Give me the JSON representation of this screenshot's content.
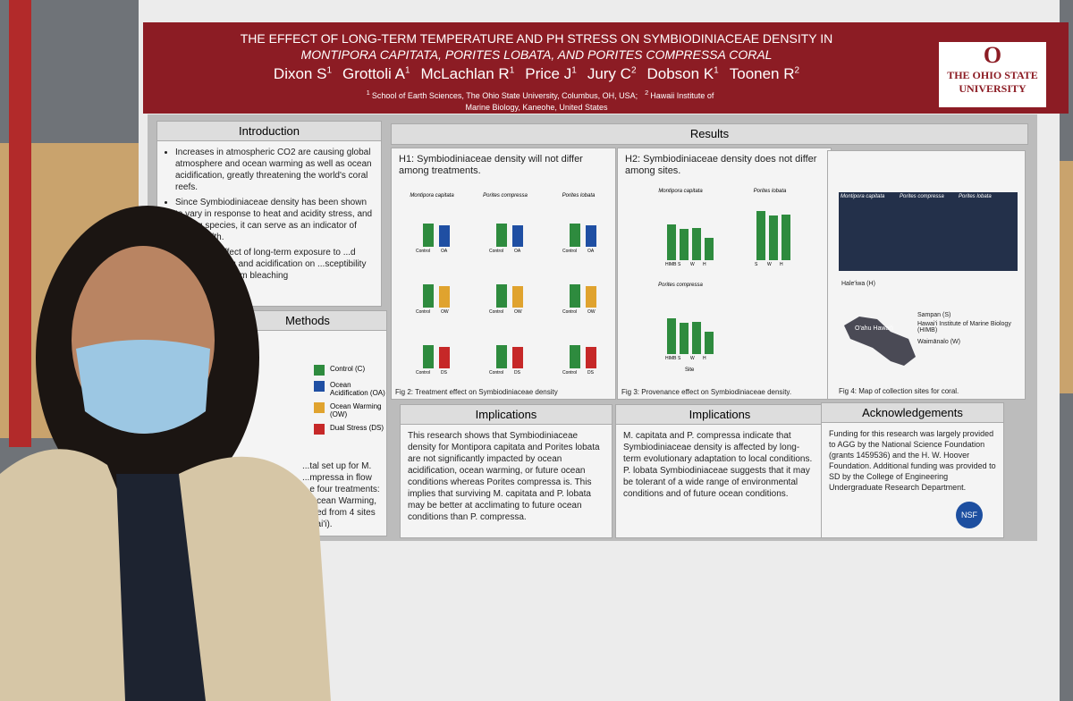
{
  "header": {
    "title_line1": "THE EFFECT OF LONG-TERM TEMPERATURE AND PH STRESS ON SYMBIODINIACEAE DENSITY IN",
    "title_line2": "MONTIPORA CAPITATA, PORITES LOBATA, AND PORITES COMPRESSA CORAL",
    "authors": [
      {
        "name": "Dixon S",
        "sup": "1"
      },
      {
        "name": "Grottoli A",
        "sup": "1"
      },
      {
        "name": "McLachlan R",
        "sup": "1"
      },
      {
        "name": "Price J",
        "sup": "1"
      },
      {
        "name": "Jury C",
        "sup": "2"
      },
      {
        "name": "Dobson K",
        "sup": "1"
      },
      {
        "name": "Toonen R",
        "sup": "2"
      }
    ],
    "affiliations": [
      {
        "sup": "1",
        "text": "School of Earth Sciences, The Ohio State University, Columbus, OH, USA;"
      },
      {
        "sup": "2",
        "text": "Hawaii Institute of Marine Biology, Kaneohe, United States"
      }
    ],
    "logo": {
      "letter": "O",
      "line1": "THE OHIO STATE",
      "line2": "UNIVERSITY"
    }
  },
  "introduction": {
    "heading": "Introduction",
    "bullets": [
      "Increases in atmospheric CO2 are causing global atmosphere and ocean warming as well as ocean acidification, greatly threatening the world's coral reefs.",
      "Since Symbiodiniaceae density has been shown to vary in response to heat and acidity stress, and among species, it can serve as an indicator of coral health.",
      "...ever, the effect of long-term exposure to ...d ocean warming and acidification on ...sceptibility and recovery from bleaching"
    ]
  },
  "methods": {
    "heading": "Methods",
    "legend": [
      "Control (C)",
      "Ocean Acidification (OA)",
      "Ocean Warming (OW)",
      "Dual Stress (DS)"
    ],
    "text": "...tal set up for M. ...mpressa in flow ...e four treatments: ...Ocean Warming, ...cted from 4 sites ...wai'i)."
  },
  "results": {
    "heading": "Results",
    "h1": "H1: Symbiodiniaceae density will not differ among treatments.",
    "h2": "H2: Symbiodiniaceae density does not differ among sites.",
    "fig2": {
      "species": [
        "Montipora capitata",
        "Porites compressa",
        "Porites lobata"
      ],
      "treatments": [
        "Control",
        "OA",
        "OW",
        "DS"
      ],
      "caption": "Fig 2: Treatment effect on Symbiodiniaceae density"
    },
    "fig3": {
      "species": [
        "Montipora capitata",
        "Porites lobata",
        "Porites compressa"
      ],
      "sites": [
        "HIMB",
        "S",
        "W",
        "H"
      ],
      "x_label": "Site",
      "caption": "Fig 3: Provenance effect on Symbiodiniaceae density."
    },
    "fig4": {
      "photo_labels": [
        "Montipora capitata",
        "Porites compressa",
        "Porites lobata"
      ],
      "map_labels": [
        "Hale'iwa (H)",
        "O'ahu Hawai'i",
        "Sampan (S)",
        "Hawai'i Institute of Marine Biology (HIMB)",
        "Waimānalo (W)"
      ],
      "caption": "Fig 4: Map of collection sites for coral."
    }
  },
  "implications1": {
    "heading": "Implications",
    "text": "This research shows that Symbiodiniaceae density for Montipora capitata and Porites lobata are not significantly impacted by ocean acidification, ocean warming, or future ocean conditions whereas Porites compressa is. This implies that surviving M. capitata and P. lobata may be better at acclimating to future ocean conditions than P. compressa."
  },
  "implications2": {
    "heading": "Implications",
    "text": "M. capitata and P. compressa indicate that Symbiodiniaceae density is affected by long-term evolutionary adaptation to local conditions. P. lobata Symbiodiniaceae suggests that it may be tolerant of a wide range of environmental conditions and of future ocean conditions."
  },
  "acknowledgements": {
    "heading": "Acknowledgements",
    "text": "Funding for this research was largely provided to AGG by the National Science Foundation (grants 1459536) and the H. W. Hoover Foundation. Additional funding was provided to SD by the College of Engineering Undergraduate Research Department.",
    "badge": "NSF"
  }
}
